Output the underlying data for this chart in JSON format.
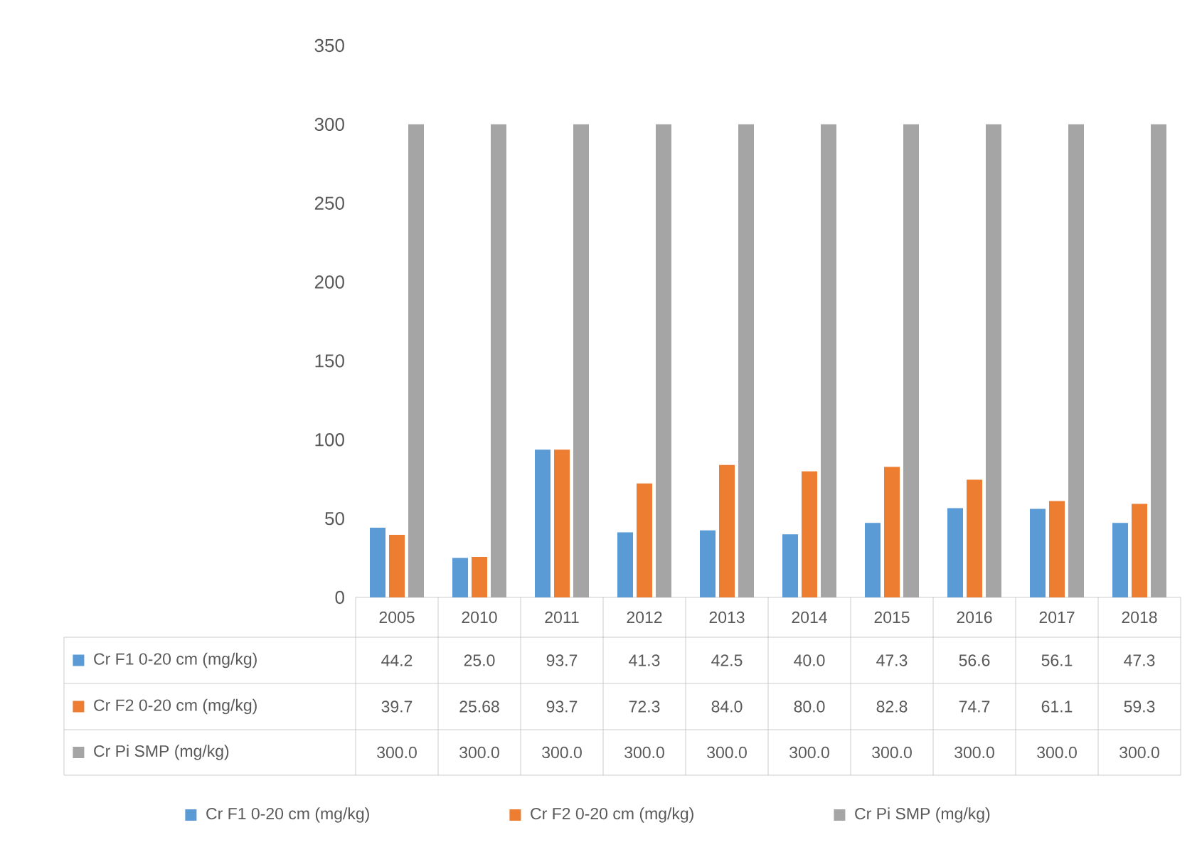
{
  "chart_data": {
    "type": "bar",
    "categories": [
      "2005",
      "2010",
      "2011",
      "2012",
      "2013",
      "2014",
      "2015",
      "2016",
      "2017",
      "2018"
    ],
    "series": [
      {
        "name": "Cr F1 0-20 cm (mg/kg)",
        "color": "#5b9bd5",
        "values": [
          44.2,
          25.0,
          93.7,
          41.3,
          42.5,
          40.0,
          47.3,
          56.6,
          56.1,
          47.3
        ],
        "value_labels": [
          "44.2",
          "25.0",
          "93.7",
          "41.3",
          "42.5",
          "40.0",
          "47.3",
          "56.6",
          "56.1",
          "47.3"
        ]
      },
      {
        "name": "Cr F2 0-20 cm (mg/kg)",
        "color": "#ed7d31",
        "values": [
          39.7,
          25.68,
          93.7,
          72.3,
          84.0,
          80.0,
          82.8,
          74.7,
          61.1,
          59.3
        ],
        "value_labels": [
          "39.7",
          "25.68",
          "93.7",
          "72.3",
          "84.0",
          "80.0",
          "82.8",
          "74.7",
          "61.1",
          "59.3"
        ]
      },
      {
        "name": "Cr Pi SMP (mg/kg)",
        "color": "#a5a5a5",
        "values": [
          300.0,
          300.0,
          300.0,
          300.0,
          300.0,
          300.0,
          300.0,
          300.0,
          300.0,
          300.0
        ],
        "value_labels": [
          "300.0",
          "300.0",
          "300.0",
          "300.0",
          "300.0",
          "300.0",
          "300.0",
          "300.0",
          "300.0",
          "300.0"
        ]
      }
    ],
    "ylim": [
      0,
      350
    ],
    "yticks": [
      0,
      50,
      100,
      150,
      200,
      250,
      300,
      350
    ],
    "legend": "bottom"
  }
}
